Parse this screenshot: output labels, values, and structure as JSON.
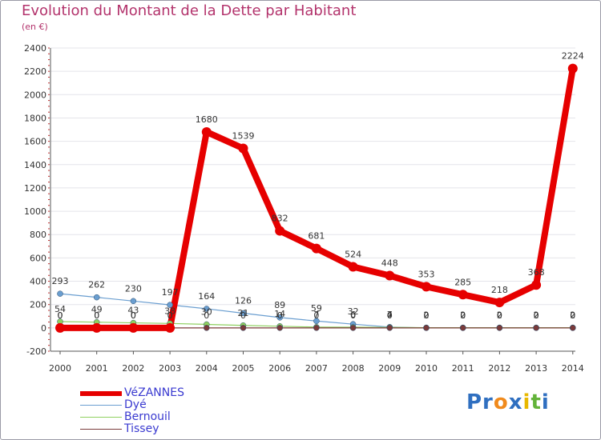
{
  "title": "Evolution du Montant de la Dette par Habitant",
  "subtitle": "(en €)",
  "logo": {
    "parts": [
      "Pr",
      "o",
      "x",
      "i",
      "t",
      "i"
    ],
    "colors": [
      "#2f6fc0",
      "#f08a1c",
      "#2f6fc0",
      "#e8b800",
      "#63b33a",
      "#2f6fc0"
    ]
  },
  "chart_data": {
    "type": "line",
    "title": "Evolution du Montant de la Dette par Habitant",
    "ylabel": "(en €)",
    "x": [
      "2000",
      "2001",
      "2002",
      "2003",
      "2004",
      "2005",
      "2006",
      "2007",
      "2008",
      "2009",
      "2010",
      "2011",
      "2012",
      "2013",
      "2014"
    ],
    "ylim": [
      -200,
      2400
    ],
    "yticks": [
      "2400",
      "2200",
      "2000",
      "1800",
      "1600",
      "1400",
      "1200",
      "1000",
      "800",
      "600",
      "400",
      "200",
      "0",
      "-200"
    ],
    "series": [
      {
        "name": "VéZANNES",
        "color": "#e60000",
        "values": [
          0,
          0,
          0,
          0,
          1680,
          1539,
          832,
          681,
          524,
          448,
          353,
          285,
          218,
          368,
          2224
        ]
      },
      {
        "name": "Dyé",
        "color": "#6a9ed0",
        "values": [
          293,
          262,
          230,
          197,
          164,
          126,
          89,
          59,
          32,
          7,
          0,
          0,
          0,
          0,
          0
        ]
      },
      {
        "name": "Bernouil",
        "color": "#8fd060",
        "values": [
          54,
          49,
          43,
          38,
          30,
          21,
          14,
          7,
          6,
          4,
          2,
          2,
          2,
          2,
          2
        ]
      },
      {
        "name": "Tissey",
        "color": "#7a3a3a",
        "values": [
          0,
          0,
          0,
          0,
          0,
          0,
          0,
          0,
          0,
          0,
          0,
          0,
          0,
          0,
          0
        ]
      }
    ],
    "value_labels": [
      [
        "0",
        "0",
        "0",
        "0",
        "1680",
        "1539",
        "832",
        "681",
        "524",
        "448",
        "353",
        "285",
        "218",
        "368",
        "2224"
      ],
      [
        "293",
        "262",
        "230",
        "197",
        "164",
        "126",
        "89",
        "59",
        "32",
        "7",
        "0",
        "0",
        "0",
        "0",
        "0"
      ],
      [
        "54",
        "49",
        "43",
        "38",
        "30",
        "21",
        "14",
        "7",
        "6",
        "4",
        "2",
        "2",
        "2",
        "2",
        "2"
      ],
      [
        "0",
        "0",
        "0",
        "0",
        "0",
        "0",
        "0",
        "0",
        "0",
        "0",
        "0",
        "0",
        "0",
        "0",
        "0"
      ]
    ],
    "legend_position": "bottom-left"
  }
}
